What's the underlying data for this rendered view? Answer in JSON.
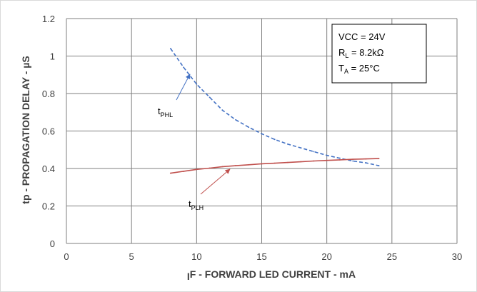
{
  "chart_data": {
    "type": "line",
    "title": "",
    "xlabel": {
      "main": "F - FORWARD LED CURRENT - mA",
      "prefix": "I",
      "prefix_sub": ""
    },
    "ylabel": "tp - PROPAGATION DELAY - µS",
    "xlim": [
      0,
      30
    ],
    "ylim": [
      0,
      1.2
    ],
    "x_ticks": [
      "0",
      "5",
      "10",
      "15",
      "20",
      "25",
      "30"
    ],
    "y_ticks": [
      "0",
      "0.2",
      "0.4",
      "0.6",
      "0.8",
      "1",
      "1.2"
    ],
    "grid": true,
    "legend_position": "top-right",
    "conditions": [
      {
        "base": "VCC = 24V",
        "sub": "",
        "tail": ""
      },
      {
        "base": "R",
        "sub": "L",
        "tail": " = 8.2kΩ"
      },
      {
        "base": "T",
        "sub": "A",
        "tail": " = 25°C"
      }
    ],
    "series": [
      {
        "base": "t",
        "sub": "PHL",
        "color": "#4472C4",
        "dashed": true,
        "x": [
          8,
          9,
          10,
          11,
          12,
          13,
          14,
          15,
          16,
          17,
          18,
          19,
          20,
          21,
          22,
          23,
          24
        ],
        "y": [
          1.04,
          0.94,
          0.85,
          0.78,
          0.71,
          0.66,
          0.62,
          0.585,
          0.555,
          0.53,
          0.51,
          0.49,
          0.47,
          0.455,
          0.44,
          0.43,
          0.415
        ]
      },
      {
        "base": "t",
        "sub": "PLH",
        "color": "#C0504D",
        "dashed": false,
        "x": [
          8,
          9,
          10,
          11,
          12,
          13,
          14,
          15,
          16,
          17,
          18,
          19,
          20,
          21,
          22,
          23,
          24
        ],
        "y": [
          0.375,
          0.385,
          0.395,
          0.402,
          0.41,
          0.415,
          0.42,
          0.425,
          0.428,
          0.432,
          0.436,
          0.44,
          0.443,
          0.446,
          0.449,
          0.451,
          0.453
        ]
      }
    ]
  }
}
